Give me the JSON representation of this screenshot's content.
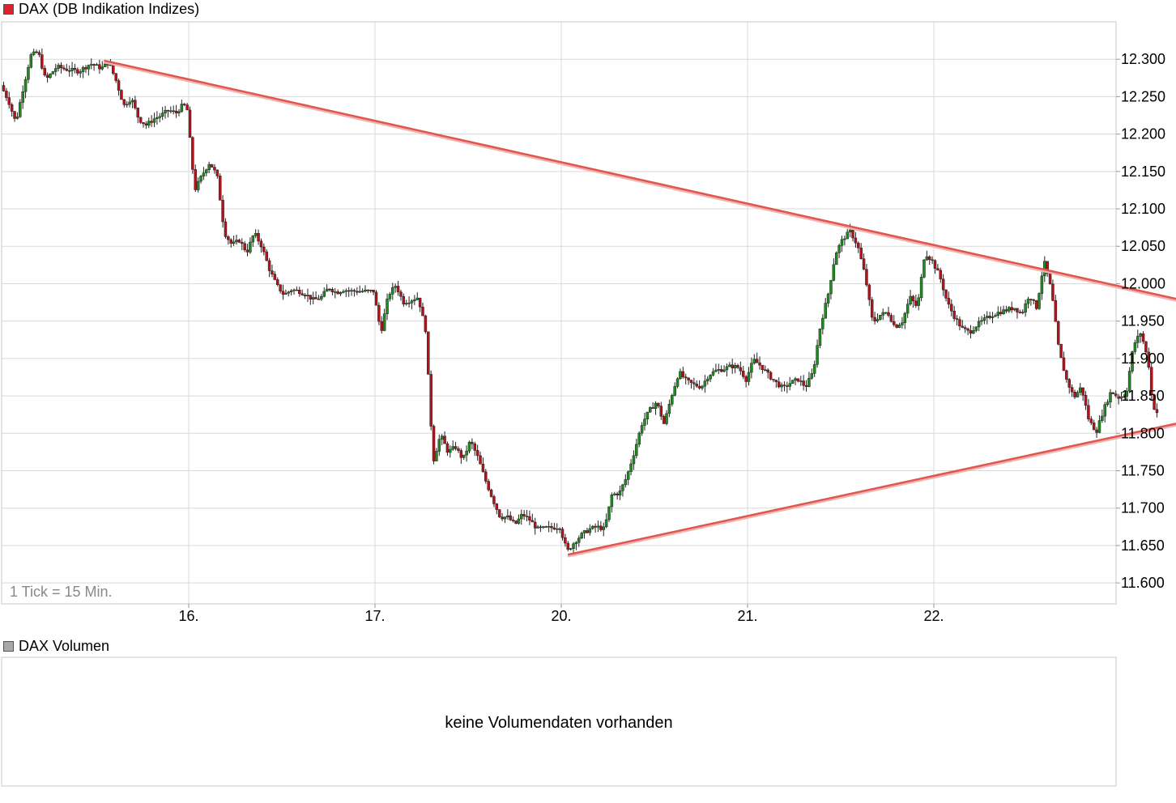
{
  "price_legend": {
    "label": "DAX (DB Indikation Indizes)",
    "color": "#e0202a"
  },
  "volume_legend": {
    "label": "DAX Volumen",
    "color": "#a9a9a9"
  },
  "tick_note": "1 Tick = 15 Min.",
  "volume_message": "keine Volumendaten vorhanden",
  "colors": {
    "up": "#1f8a1f",
    "down": "#b5121b",
    "trendline": "#e05550",
    "grid": "#d9d9d9",
    "frame": "#c8c8c8"
  },
  "chart_data": {
    "type": "candlestick",
    "x_ticks": [
      {
        "label": "16.",
        "session": 1
      },
      {
        "label": "17.",
        "session": 2
      },
      {
        "label": "20.",
        "session": 3
      },
      {
        "label": "21.",
        "session": 4
      },
      {
        "label": "22.",
        "session": 5
      }
    ],
    "y_ticks": [
      "12.300",
      "12.250",
      "12.200",
      "12.150",
      "12.100",
      "12.050",
      "12.000",
      "11.950",
      "11.900",
      "11.850",
      "11.800",
      "11.750",
      "11.700",
      "11.650",
      "11.600"
    ],
    "y_values": [
      12300,
      12250,
      12200,
      12150,
      12100,
      12050,
      12000,
      11950,
      11900,
      11850,
      11800,
      11750,
      11700,
      11650,
      11600
    ],
    "ylim": [
      11572,
      12350
    ],
    "grid": true,
    "price_path": [
      [
        0.0,
        12265
      ],
      [
        0.04,
        12245
      ],
      [
        0.08,
        12215
      ],
      [
        0.12,
        12262
      ],
      [
        0.16,
        12305
      ],
      [
        0.2,
        12310
      ],
      [
        0.24,
        12272
      ],
      [
        0.3,
        12290
      ],
      [
        0.36,
        12286
      ],
      [
        0.42,
        12284
      ],
      [
        0.48,
        12294
      ],
      [
        0.54,
        12288
      ],
      [
        0.58,
        12296
      ],
      [
        0.62,
        12270
      ],
      [
        0.66,
        12238
      ],
      [
        0.7,
        12248
      ],
      [
        0.74,
        12220
      ],
      [
        0.78,
        12212
      ],
      [
        0.82,
        12220
      ],
      [
        0.86,
        12225
      ],
      [
        0.9,
        12232
      ],
      [
        0.94,
        12228
      ],
      [
        0.98,
        12240
      ],
      [
        1.0,
        12232
      ],
      [
        1.04,
        12125
      ],
      [
        1.08,
        12145
      ],
      [
        1.12,
        12162
      ],
      [
        1.16,
        12145
      ],
      [
        1.2,
        12068
      ],
      [
        1.24,
        12052
      ],
      [
        1.28,
        12058
      ],
      [
        1.32,
        12042
      ],
      [
        1.36,
        12068
      ],
      [
        1.4,
        12050
      ],
      [
        1.44,
        12020
      ],
      [
        1.48,
        11998
      ],
      [
        1.52,
        11985
      ],
      [
        1.56,
        11992
      ],
      [
        1.6,
        11990
      ],
      [
        1.64,
        11985
      ],
      [
        1.68,
        11978
      ],
      [
        1.72,
        11982
      ],
      [
        1.76,
        11995
      ],
      [
        1.8,
        11988
      ],
      [
        1.84,
        11992
      ],
      [
        1.88,
        11990
      ],
      [
        2.0,
        11990
      ],
      [
        2.04,
        11935
      ],
      [
        2.08,
        11985
      ],
      [
        2.12,
        11998
      ],
      [
        2.16,
        11975
      ],
      [
        2.2,
        11978
      ],
      [
        2.24,
        11982
      ],
      [
        2.28,
        11938
      ],
      [
        2.32,
        11762
      ],
      [
        2.36,
        11798
      ],
      [
        2.4,
        11775
      ],
      [
        2.44,
        11782
      ],
      [
        2.48,
        11765
      ],
      [
        2.52,
        11790
      ],
      [
        2.56,
        11768
      ],
      [
        2.6,
        11738
      ],
      [
        2.64,
        11712
      ],
      [
        2.68,
        11688
      ],
      [
        2.72,
        11688
      ],
      [
        2.76,
        11678
      ],
      [
        2.8,
        11692
      ],
      [
        2.84,
        11684
      ],
      [
        2.88,
        11672
      ],
      [
        3.0,
        11675
      ],
      [
        3.04,
        11642
      ],
      [
        3.08,
        11655
      ],
      [
        3.12,
        11665
      ],
      [
        3.16,
        11672
      ],
      [
        3.2,
        11675
      ],
      [
        3.24,
        11672
      ],
      [
        3.28,
        11718
      ],
      [
        3.32,
        11720
      ],
      [
        3.36,
        11742
      ],
      [
        3.4,
        11775
      ],
      [
        3.44,
        11812
      ],
      [
        3.48,
        11830
      ],
      [
        3.52,
        11842
      ],
      [
        3.56,
        11812
      ],
      [
        3.6,
        11850
      ],
      [
        3.64,
        11882
      ],
      [
        3.68,
        11870
      ],
      [
        3.72,
        11865
      ],
      [
        3.76,
        11862
      ],
      [
        3.8,
        11878
      ],
      [
        3.84,
        11884
      ],
      [
        3.88,
        11886
      ],
      [
        3.92,
        11890
      ],
      [
        3.96,
        11888
      ],
      [
        4.0,
        11872
      ],
      [
        4.04,
        11898
      ],
      [
        4.08,
        11890
      ],
      [
        4.12,
        11878
      ],
      [
        4.16,
        11868
      ],
      [
        4.2,
        11860
      ],
      [
        4.24,
        11868
      ],
      [
        4.28,
        11872
      ],
      [
        4.32,
        11862
      ],
      [
        4.36,
        11882
      ],
      [
        4.4,
        11945
      ],
      [
        4.44,
        11985
      ],
      [
        4.48,
        12040
      ],
      [
        4.52,
        12060
      ],
      [
        4.56,
        12070
      ],
      [
        4.6,
        12050
      ],
      [
        4.64,
        12010
      ],
      [
        4.68,
        11948
      ],
      [
        4.72,
        11958
      ],
      [
        4.76,
        11962
      ],
      [
        4.8,
        11942
      ],
      [
        4.84,
        11950
      ],
      [
        4.88,
        11982
      ],
      [
        4.92,
        11968
      ],
      [
        4.96,
        12042
      ],
      [
        5.0,
        12030
      ],
      [
        5.04,
        12010
      ],
      [
        5.08,
        11975
      ],
      [
        5.12,
        11955
      ],
      [
        5.16,
        11940
      ],
      [
        5.2,
        11935
      ],
      [
        5.24,
        11945
      ],
      [
        5.28,
        11952
      ],
      [
        5.32,
        11958
      ],
      [
        5.36,
        11962
      ],
      [
        5.4,
        11965
      ],
      [
        5.44,
        11968
      ],
      [
        5.48,
        11960
      ],
      [
        5.52,
        11985
      ],
      [
        5.56,
        11968
      ],
      [
        5.6,
        12030
      ],
      [
        5.64,
        11990
      ],
      [
        5.68,
        11910
      ],
      [
        5.72,
        11872
      ],
      [
        5.76,
        11848
      ],
      [
        5.8,
        11862
      ],
      [
        5.84,
        11818
      ],
      [
        5.88,
        11802
      ],
      [
        5.92,
        11832
      ],
      [
        5.96,
        11856
      ],
      [
        6.0,
        11848
      ],
      [
        6.04,
        11852
      ],
      [
        6.08,
        11918
      ],
      [
        6.12,
        11935
      ],
      [
        6.16,
        11895
      ],
      [
        6.18,
        11842
      ],
      [
        6.2,
        11828
      ]
    ],
    "trendlines": [
      {
        "x1": 0.55,
        "y1": 12298,
        "x2": 6.35,
        "y2": 11977
      },
      {
        "x1": 3.04,
        "y1": 11638,
        "x2": 6.32,
        "y2": 11814
      }
    ]
  }
}
